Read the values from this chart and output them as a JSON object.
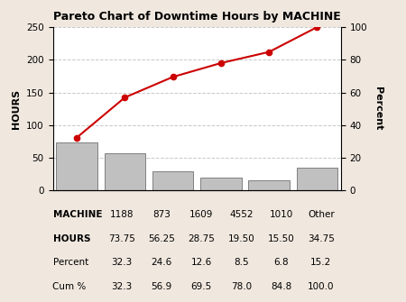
{
  "title": "Pareto Chart of Downtime Hours by MACHINE",
  "categories": [
    "1188",
    "873",
    "1609",
    "4552",
    "1010",
    "Other"
  ],
  "hours": [
    73.75,
    56.25,
    28.75,
    19.5,
    15.5,
    34.75
  ],
  "cum_pct": [
    32.3,
    56.9,
    69.5,
    78.0,
    84.8,
    100.0
  ],
  "bar_color": "#c0c0c0",
  "bar_edge_color": "#707070",
  "line_color": "#cc0000",
  "marker_color": "#cc0000",
  "bg_color": "#f0e8df",
  "plot_bg_color": "#ffffff",
  "ylabel_left": "HOURS",
  "ylabel_right": "Percent",
  "ylim_left": [
    0,
    250
  ],
  "ylim_right": [
    0,
    100
  ],
  "yticks_left": [
    0,
    50,
    100,
    150,
    200,
    250
  ],
  "yticks_right": [
    0,
    20,
    40,
    60,
    80,
    100
  ],
  "grid_color": "#c8c8c8",
  "table_rows": [
    "MACHINE",
    "HOURS",
    "Percent",
    "Cum %"
  ],
  "table_data": [
    [
      "1188",
      "873",
      "1609",
      "4552",
      "1010",
      "Other"
    ],
    [
      "73.75",
      "56.25",
      "28.75",
      "19.50",
      "15.50",
      "34.75"
    ],
    [
      "32.3",
      "24.6",
      "12.6",
      "8.5",
      "6.8",
      "15.2"
    ],
    [
      "32.3",
      "56.9",
      "69.5",
      "78.0",
      "84.8",
      "100.0"
    ]
  ]
}
